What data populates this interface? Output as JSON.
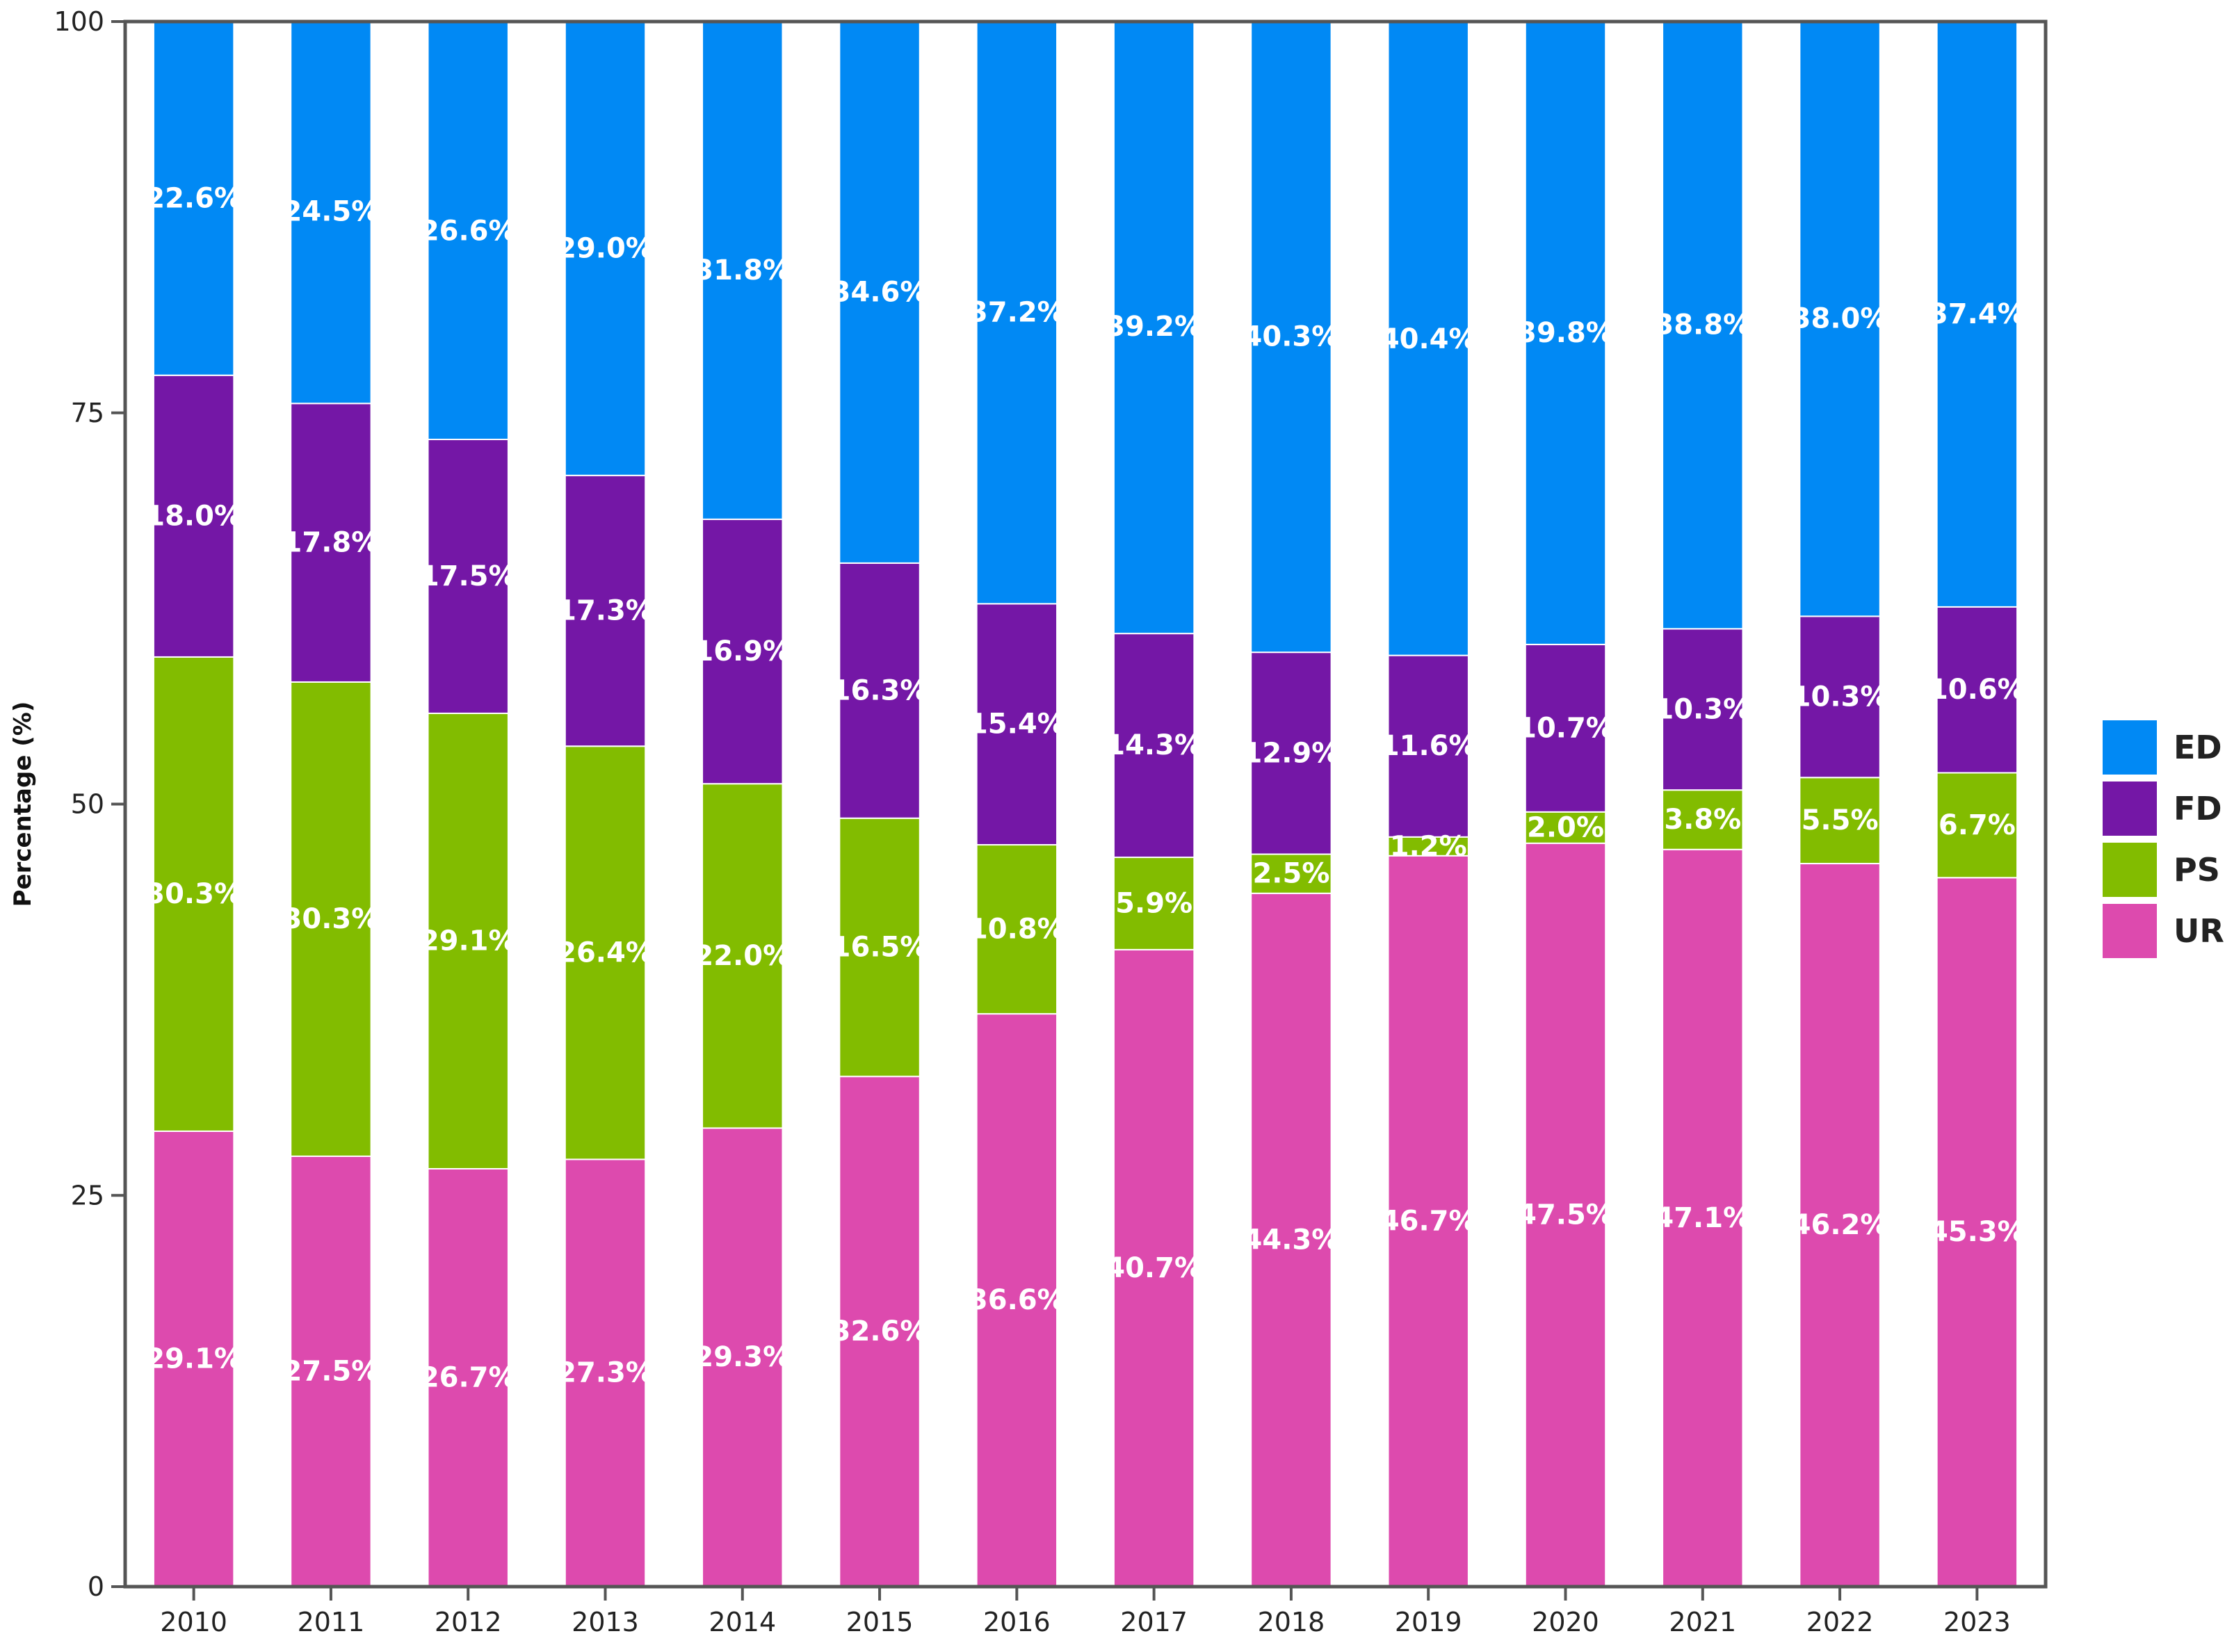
{
  "chart_data": {
    "type": "bar",
    "stacked": true,
    "title": "",
    "xlabel": "",
    "ylabel": "Percentage (%)",
    "ylim": [
      0,
      100
    ],
    "yticks": [
      0,
      25,
      50,
      75,
      100
    ],
    "grid": false,
    "legend_position": "right",
    "categories": [
      "2010",
      "2011",
      "2012",
      "2013",
      "2014",
      "2015",
      "2016",
      "2017",
      "2018",
      "2019",
      "2020",
      "2021",
      "2022",
      "2023"
    ],
    "series": [
      {
        "name": "UR",
        "color": "#DD4AAE",
        "values": [
          29.1,
          27.5,
          26.7,
          27.3,
          29.3,
          32.6,
          36.6,
          40.7,
          44.3,
          46.7,
          47.5,
          47.1,
          46.2,
          45.3
        ],
        "labels": [
          "29.1%",
          "27.5%",
          "26.7%",
          "27.3%",
          "29.3%",
          "32.6%",
          "36.6%",
          "40.7%",
          "44.3%",
          "46.7%",
          "47.5%",
          "47.1%",
          "46.2%",
          "45.3%"
        ]
      },
      {
        "name": "PS",
        "color": "#82BC00",
        "values": [
          30.3,
          30.3,
          29.1,
          26.4,
          22.0,
          16.5,
          10.8,
          5.9,
          2.5,
          1.2,
          2.0,
          3.8,
          5.5,
          6.7
        ],
        "labels": [
          "30.3%",
          "30.3%",
          "29.1%",
          "26.4%",
          "22.0%",
          "16.5%",
          "10.8%",
          "5.9%",
          "2.5%",
          "1.2%",
          "2.0%",
          "3.8%",
          "5.5%",
          "6.7%"
        ]
      },
      {
        "name": "FD",
        "color": "#7417A6",
        "values": [
          18.0,
          17.8,
          17.5,
          17.3,
          16.9,
          16.3,
          15.4,
          14.3,
          12.9,
          11.6,
          10.7,
          10.3,
          10.3,
          10.6
        ],
        "labels": [
          "18.0%",
          "17.8%",
          "17.5%",
          "17.3%",
          "16.9%",
          "16.3%",
          "15.4%",
          "14.3%",
          "12.9%",
          "11.6%",
          "10.7%",
          "10.3%",
          "10.3%",
          "10.6%"
        ]
      },
      {
        "name": "ED",
        "color": "#0189F4",
        "values": [
          22.6,
          24.5,
          26.6,
          29.0,
          31.8,
          34.6,
          37.2,
          39.2,
          40.3,
          40.4,
          39.8,
          38.8,
          38.0,
          37.4
        ],
        "labels": [
          "22.6%",
          "24.5%",
          "26.6%",
          "29.0%",
          "31.8%",
          "34.6%",
          "37.2%",
          "39.2%",
          "40.3%",
          "40.4%",
          "39.8%",
          "38.8%",
          "38.0%",
          "37.4%"
        ]
      }
    ],
    "legend_order": [
      "ED",
      "FD",
      "PS",
      "UR"
    ]
  }
}
